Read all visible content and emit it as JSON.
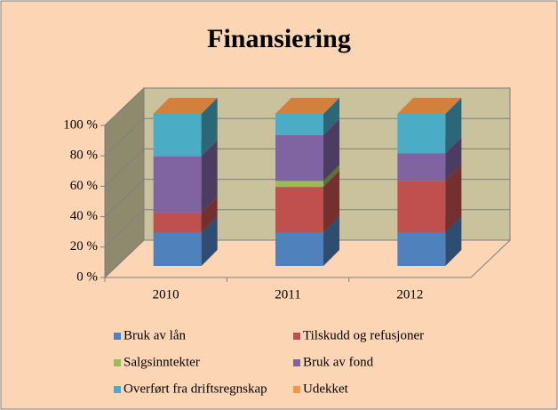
{
  "chart_data": {
    "type": "bar3d_stacked",
    "title": "Finansiering",
    "categories": [
      "2010",
      "2011",
      "2012"
    ],
    "series": [
      {
        "name": "Bruk av lån",
        "color": "#4f81bd",
        "values": [
          22,
          22,
          22
        ]
      },
      {
        "name": "Tilskudd og refusjoner",
        "color": "#c0504d",
        "values": [
          13,
          30,
          34
        ]
      },
      {
        "name": "Salgsinntekter",
        "color": "#9bbb59",
        "values": [
          0,
          4,
          0
        ]
      },
      {
        "name": "Bruk av fond",
        "color": "#8064a2",
        "values": [
          37,
          30,
          18
        ]
      },
      {
        "name": "Overført fra driftsregnskap",
        "color": "#4bacc6",
        "values": [
          28,
          14,
          26
        ]
      },
      {
        "name": "Udekket",
        "color": "#f79646",
        "values": [
          0,
          0,
          0
        ]
      }
    ],
    "ylim": [
      0,
      100
    ],
    "yticks": [
      {
        "value": 0,
        "label": "0 %"
      },
      {
        "value": 20,
        "label": "20 %"
      },
      {
        "value": 40,
        "label": "40 %"
      },
      {
        "value": 60,
        "label": "60 %"
      },
      {
        "value": 80,
        "label": "80 %"
      },
      {
        "value": 100,
        "label": "100 %"
      }
    ],
    "grid": true,
    "legend": "bottom"
  }
}
